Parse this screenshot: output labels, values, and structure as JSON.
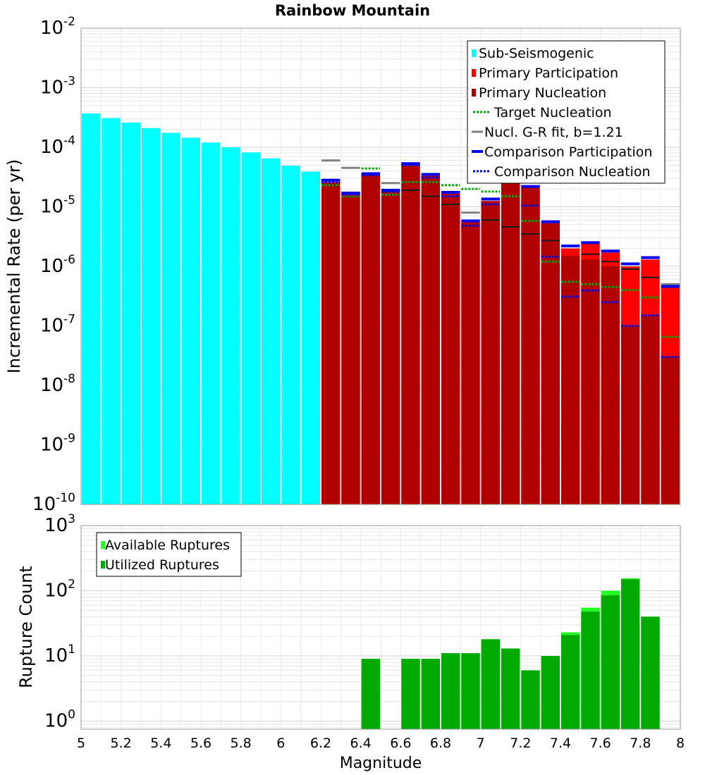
{
  "chart_data": [
    {
      "type": "bar",
      "title": "Rainbow Mountain",
      "ylabel": "Incremental Rate (per yr)",
      "xlabel": "",
      "yscale": "log",
      "ylim": [
        1e-10,
        0.01
      ],
      "xlim": [
        5,
        8
      ],
      "x_tick_labels": [
        "5",
        "5.2",
        "5.4",
        "5.6",
        "5.8",
        "6",
        "6.2",
        "6.4",
        "6.6",
        "6.8",
        "7",
        "7.2",
        "7.4",
        "7.6",
        "7.8",
        "8"
      ],
      "y_tick_labels": [
        {
          "base": "10",
          "exp": "-2"
        },
        {
          "base": "10",
          "exp": "-3"
        },
        {
          "base": "10",
          "exp": "-4"
        },
        {
          "base": "10",
          "exp": "-5"
        },
        {
          "base": "10",
          "exp": "-6"
        },
        {
          "base": "10",
          "exp": "-7"
        },
        {
          "base": "10",
          "exp": "-8"
        },
        {
          "base": "10",
          "exp": "-9"
        },
        {
          "base": "10",
          "exp": "-10"
        }
      ],
      "legend_position": "top-right",
      "colors": {
        "sub_seismogenic": "#00ffff",
        "primary_participation": "#ff0000",
        "primary_nucleation": "#b00000",
        "target_nucleation": "#00aa00",
        "gr_fit": "#808080",
        "comparison_participation": "#0000ee",
        "comparison_nucleation": "#0000ee",
        "nucleation_marker": "#1a1a1a"
      },
      "legend": [
        "Sub-Seismogenic",
        "Primary Participation",
        "Primary Nucleation",
        "Target Nucleation",
        "Nucl. G-R fit, b=1.21",
        "Comparison Participation",
        "Comparison Nucleation"
      ],
      "series": [
        {
          "name": "Sub-Seismogenic",
          "x": [
            5.05,
            5.15,
            5.25,
            5.35,
            5.45,
            5.55,
            5.65,
            5.75,
            5.85,
            5.95,
            6.05,
            6.15
          ],
          "values": [
            0.00037,
            0.00031,
            0.00026,
            0.00021,
            0.000175,
            0.000145,
            0.00012,
            0.0001,
            8.2e-05,
            6.5e-05,
            4.9e-05,
            3.9e-05
          ]
        },
        {
          "name": "Primary Participation",
          "x": [
            6.25,
            6.35,
            6.45,
            6.55,
            6.65,
            6.75,
            6.85,
            6.95,
            7.05,
            7.15,
            7.25,
            7.35,
            7.45,
            7.55,
            7.65,
            7.75,
            7.85,
            7.95
          ],
          "values": [
            2.6e-05,
            1.6e-05,
            3.4e-05,
            1.8e-05,
            5e-05,
            3.3e-05,
            1.65e-05,
            5.5e-06,
            1.25e-05,
            3e-05,
            2.1e-05,
            5.3e-06,
            2e-06,
            2.4e-06,
            1.7e-06,
            1e-06,
            1.3e-06,
            4.4e-07
          ]
        },
        {
          "name": "Primary Nucleation",
          "x": [
            6.25,
            6.35,
            6.45,
            6.55,
            6.65,
            6.75,
            6.85,
            6.95,
            7.05,
            7.15,
            7.25,
            7.35,
            7.45,
            7.55,
            7.65,
            7.75,
            7.85,
            7.95
          ],
          "values": [
            2.6e-05,
            1.6e-05,
            3.4e-05,
            1.8e-05,
            5e-05,
            3.3e-05,
            1.65e-05,
            5.5e-06,
            1.25e-05,
            3e-05,
            2.1e-05,
            5.3e-06,
            1.5e-06,
            1.3e-06,
            1e-06,
            1e-07,
            1.5e-07,
            3e-08
          ]
        },
        {
          "name": "Target Nucleation",
          "x": [
            6.25,
            6.35,
            6.45,
            6.55,
            6.65,
            6.75,
            6.85,
            6.95,
            7.05,
            7.15,
            7.25,
            7.35,
            7.45,
            7.55,
            7.65,
            7.75,
            7.85,
            7.95
          ],
          "values": [
            2.3e-05,
            1.5e-05,
            4.4e-05,
            1.6e-05,
            2.6e-05,
            2.6e-05,
            2.3e-05,
            2e-05,
            1.8e-05,
            1.5e-05,
            5.8e-06,
            1.2e-06,
            5.5e-07,
            5e-07,
            4.5e-07,
            4e-07,
            3e-07,
            6.5e-08
          ]
        },
        {
          "name": "Nucl. G-R fit, b=1.21",
          "x": [
            6.25,
            6.35,
            6.55,
            6.95,
            7.95
          ],
          "values": [
            6e-05,
            4.5e-05,
            2.5e-05,
            8e-06,
            5e-07
          ]
        },
        {
          "name": "Nucleation markers",
          "x": [
            6.65,
            6.75,
            6.85,
            7.05,
            7.15,
            7.25,
            7.35,
            7.55,
            7.65,
            7.75,
            7.85
          ],
          "values": [
            1.9e-05,
            1.5e-05,
            1.1e-05,
            6e-06,
            4.6e-06,
            3.5e-06,
            2.7e-06,
            1.6e-06,
            1.2e-06,
            9e-07,
            6.5e-07
          ]
        },
        {
          "name": "Comparison Participation",
          "x": [
            6.25,
            6.35,
            6.45,
            6.55,
            6.65,
            6.75,
            6.85,
            6.95,
            7.05,
            7.15,
            7.25,
            7.35,
            7.45,
            7.55,
            7.65,
            7.75,
            7.85,
            7.95
          ],
          "values": [
            2.8e-05,
            1.7e-05,
            3.6e-05,
            1.9e-05,
            5.3e-05,
            3.5e-05,
            1.75e-05,
            5.8e-06,
            1.35e-05,
            3.1e-05,
            2.2e-05,
            5.6e-06,
            2.2e-06,
            2.5e-06,
            1.8e-06,
            1.1e-06,
            1.4e-06,
            4.6e-07
          ]
        },
        {
          "name": "Comparison Nucleation",
          "x": [
            6.25,
            6.35,
            6.45,
            6.55,
            6.65,
            6.75,
            6.85,
            6.95,
            7.05,
            7.15,
            7.25,
            7.35,
            7.45,
            7.55,
            7.65,
            7.75,
            7.85,
            7.95
          ],
          "values": [
            2.6e-05,
            1.6e-05,
            3.4e-05,
            1.8e-05,
            5e-05,
            3.1e-05,
            1.5e-05,
            4.8e-06,
            1.1e-05,
            2.7e-05,
            1.05e-05,
            1.45e-06,
            3.1e-07,
            3.9e-07,
            2.5e-07,
            1e-07,
            1.5e-07,
            3e-08
          ]
        }
      ]
    },
    {
      "type": "bar",
      "title": "",
      "xlabel": "Magnitude",
      "ylabel": "Rupture Count",
      "yscale": "log",
      "ylim": [
        0.75,
        1000
      ],
      "xlim": [
        5,
        8
      ],
      "x_tick_labels": [
        "5",
        "5.2",
        "5.4",
        "5.6",
        "5.8",
        "6",
        "6.2",
        "6.4",
        "6.6",
        "6.8",
        "7",
        "7.2",
        "7.4",
        "7.6",
        "7.8",
        "8"
      ],
      "y_tick_labels": [
        {
          "base": "10",
          "exp": "3"
        },
        {
          "base": "10",
          "exp": "2"
        },
        {
          "base": "10",
          "exp": "1"
        },
        {
          "base": "10",
          "exp": "0"
        }
      ],
      "legend_position": "top-left",
      "colors": {
        "available": "#22ff22",
        "utilized": "#00aa00"
      },
      "legend": [
        "Available Ruptures",
        "Utilized Ruptures"
      ],
      "series": [
        {
          "name": "Available Ruptures",
          "x": [
            6.45,
            6.65,
            6.75,
            6.85,
            6.95,
            7.05,
            7.15,
            7.25,
            7.35,
            7.45,
            7.55,
            7.65,
            7.75,
            7.85
          ],
          "values": [
            9,
            9,
            9,
            11,
            11,
            18,
            13,
            6,
            10,
            23,
            55,
            100,
            155,
            40
          ]
        },
        {
          "name": "Utilized Ruptures",
          "x": [
            6.45,
            6.65,
            6.75,
            6.85,
            6.95,
            7.05,
            7.15,
            7.25,
            7.35,
            7.45,
            7.55,
            7.65,
            7.75,
            7.85
          ],
          "values": [
            9,
            9,
            9,
            11,
            11,
            18,
            13,
            6,
            10,
            21,
            48,
            85,
            150,
            40
          ]
        }
      ]
    }
  ]
}
